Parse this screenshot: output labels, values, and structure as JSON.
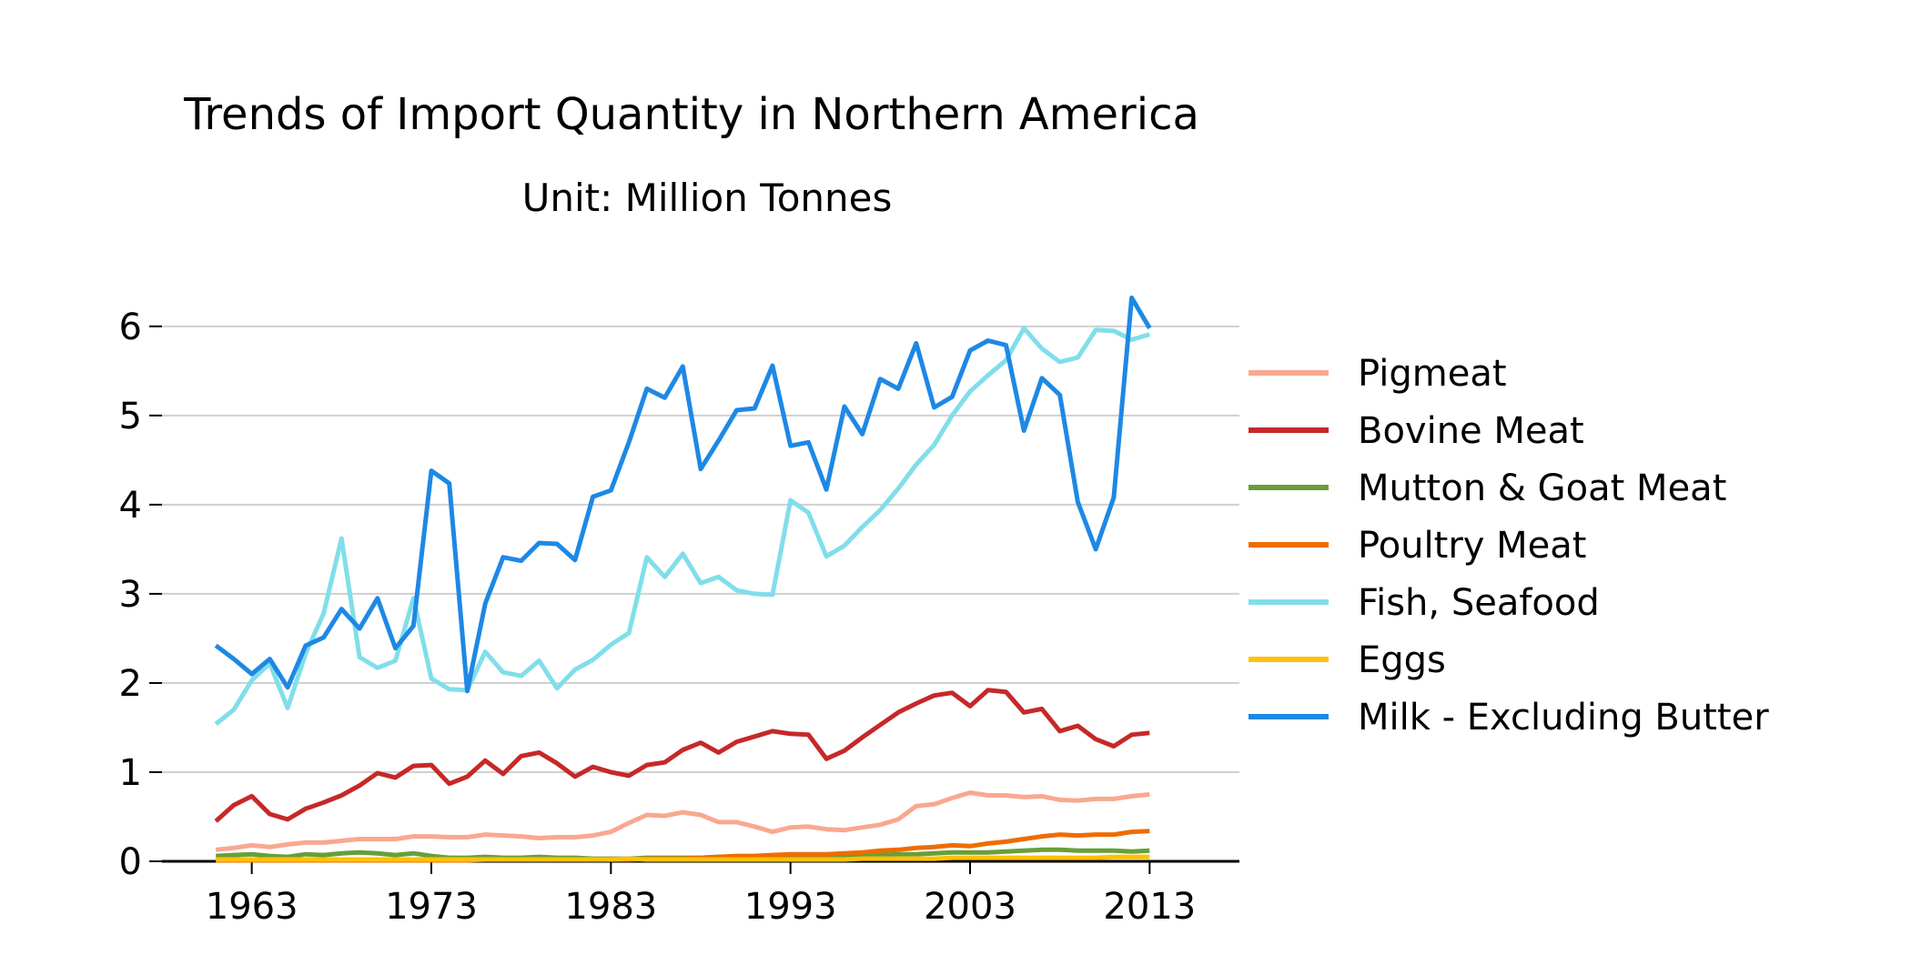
{
  "chart_data": {
    "type": "line",
    "title": "Trends of Import Quantity in Northern America",
    "subtitle": "Unit: Million Tonnes",
    "xlabel": "",
    "ylabel": "",
    "xlim": [
      1958,
      2018
    ],
    "ylim": [
      0,
      6.6
    ],
    "xticks": [
      1963,
      1973,
      1983,
      1993,
      2003,
      2013
    ],
    "yticks": [
      0,
      1,
      2,
      3,
      4,
      5,
      6
    ],
    "grid": "horizontal",
    "legend_position": "right",
    "x": [
      1961,
      1962,
      1963,
      1964,
      1965,
      1966,
      1967,
      1968,
      1969,
      1970,
      1971,
      1972,
      1973,
      1974,
      1975,
      1976,
      1977,
      1978,
      1979,
      1980,
      1981,
      1982,
      1983,
      1984,
      1985,
      1986,
      1987,
      1988,
      1989,
      1990,
      1991,
      1992,
      1993,
      1994,
      1995,
      1996,
      1997,
      1998,
      1999,
      2000,
      2001,
      2002,
      2003,
      2004,
      2005,
      2006,
      2007,
      2008,
      2009,
      2010,
      2011,
      2012,
      2013
    ],
    "series": [
      {
        "name": "Pigmeat",
        "color": "#f9a88f",
        "values": [
          0.13,
          0.15,
          0.18,
          0.16,
          0.19,
          0.21,
          0.21,
          0.23,
          0.25,
          0.25,
          0.25,
          0.28,
          0.28,
          0.27,
          0.27,
          0.3,
          0.29,
          0.28,
          0.26,
          0.27,
          0.27,
          0.29,
          0.33,
          0.43,
          0.52,
          0.51,
          0.55,
          0.52,
          0.44,
          0.44,
          0.39,
          0.33,
          0.38,
          0.39,
          0.36,
          0.35,
          0.38,
          0.41,
          0.47,
          0.62,
          0.64,
          0.71,
          0.77,
          0.74,
          0.74,
          0.72,
          0.73,
          0.69,
          0.68,
          0.7,
          0.7,
          0.73,
          0.75
        ]
      },
      {
        "name": "Bovine Meat",
        "color": "#c62828",
        "values": [
          0.45,
          0.63,
          0.73,
          0.53,
          0.47,
          0.59,
          0.66,
          0.74,
          0.85,
          0.99,
          0.94,
          1.07,
          1.08,
          0.87,
          0.95,
          1.13,
          0.98,
          1.18,
          1.22,
          1.1,
          0.95,
          1.06,
          1.0,
          0.96,
          1.08,
          1.11,
          1.25,
          1.33,
          1.22,
          1.34,
          1.4,
          1.46,
          1.43,
          1.42,
          1.15,
          1.24,
          1.39,
          1.53,
          1.67,
          1.77,
          1.86,
          1.89,
          1.74,
          1.92,
          1.9,
          1.67,
          1.71,
          1.46,
          1.52,
          1.37,
          1.29,
          1.42,
          1.44
        ]
      },
      {
        "name": "Mutton & Goat Meat",
        "color": "#689f38",
        "values": [
          0.06,
          0.07,
          0.08,
          0.06,
          0.05,
          0.08,
          0.07,
          0.09,
          0.1,
          0.09,
          0.07,
          0.09,
          0.06,
          0.04,
          0.04,
          0.05,
          0.04,
          0.04,
          0.05,
          0.04,
          0.04,
          0.03,
          0.03,
          0.03,
          0.04,
          0.04,
          0.04,
          0.04,
          0.05,
          0.05,
          0.05,
          0.05,
          0.06,
          0.06,
          0.06,
          0.06,
          0.07,
          0.07,
          0.08,
          0.08,
          0.09,
          0.1,
          0.1,
          0.1,
          0.11,
          0.12,
          0.13,
          0.13,
          0.12,
          0.12,
          0.12,
          0.11,
          0.12
        ]
      },
      {
        "name": "Poultry Meat",
        "color": "#ef6c00",
        "values": [
          0.01,
          0.01,
          0.01,
          0.01,
          0.01,
          0.01,
          0.01,
          0.01,
          0.01,
          0.01,
          0.01,
          0.01,
          0.01,
          0.01,
          0.01,
          0.02,
          0.02,
          0.02,
          0.02,
          0.02,
          0.02,
          0.02,
          0.02,
          0.02,
          0.03,
          0.03,
          0.03,
          0.04,
          0.05,
          0.06,
          0.06,
          0.07,
          0.08,
          0.08,
          0.08,
          0.09,
          0.1,
          0.12,
          0.13,
          0.15,
          0.16,
          0.18,
          0.17,
          0.2,
          0.22,
          0.25,
          0.28,
          0.3,
          0.29,
          0.3,
          0.3,
          0.33,
          0.34
        ]
      },
      {
        "name": "Fish, Seafood",
        "color": "#80deea",
        "values": [
          1.54,
          1.7,
          2.03,
          2.22,
          1.72,
          2.33,
          2.78,
          3.62,
          2.29,
          2.17,
          2.25,
          2.95,
          2.05,
          1.93,
          1.92,
          2.35,
          2.12,
          2.08,
          2.25,
          1.94,
          2.15,
          2.26,
          2.43,
          2.56,
          3.41,
          3.19,
          3.45,
          3.12,
          3.19,
          3.04,
          3.0,
          2.99,
          4.05,
          3.91,
          3.42,
          3.54,
          3.75,
          3.94,
          4.18,
          4.45,
          4.67,
          5.0,
          5.27,
          5.45,
          5.62,
          5.98,
          5.75,
          5.6,
          5.65,
          5.96,
          5.95,
          5.85,
          5.91
        ]
      },
      {
        "name": "Eggs",
        "color": "#ffc107",
        "values": [
          0.02,
          0.02,
          0.02,
          0.02,
          0.02,
          0.02,
          0.02,
          0.02,
          0.02,
          0.02,
          0.02,
          0.02,
          0.02,
          0.02,
          0.02,
          0.02,
          0.02,
          0.02,
          0.02,
          0.02,
          0.02,
          0.02,
          0.02,
          0.03,
          0.02,
          0.02,
          0.02,
          0.02,
          0.02,
          0.02,
          0.02,
          0.02,
          0.02,
          0.02,
          0.02,
          0.02,
          0.03,
          0.03,
          0.03,
          0.03,
          0.03,
          0.04,
          0.04,
          0.04,
          0.04,
          0.04,
          0.04,
          0.04,
          0.04,
          0.04,
          0.05,
          0.05,
          0.05
        ]
      },
      {
        "name": "Milk - Excluding Butter",
        "color": "#1e88e5",
        "values": [
          2.42,
          2.27,
          2.1,
          2.27,
          1.95,
          2.42,
          2.51,
          2.83,
          2.61,
          2.95,
          2.39,
          2.64,
          4.38,
          4.24,
          1.91,
          2.89,
          3.41,
          3.37,
          3.57,
          3.56,
          3.38,
          4.09,
          4.16,
          4.7,
          5.3,
          5.2,
          5.55,
          4.4,
          4.72,
          5.06,
          5.08,
          5.56,
          4.66,
          4.7,
          4.17,
          5.1,
          4.79,
          5.41,
          5.3,
          5.81,
          5.09,
          5.21,
          5.73,
          5.84,
          5.79,
          4.83,
          5.42,
          5.23,
          4.03,
          3.5,
          4.08,
          6.32,
          5.98
        ]
      }
    ]
  }
}
